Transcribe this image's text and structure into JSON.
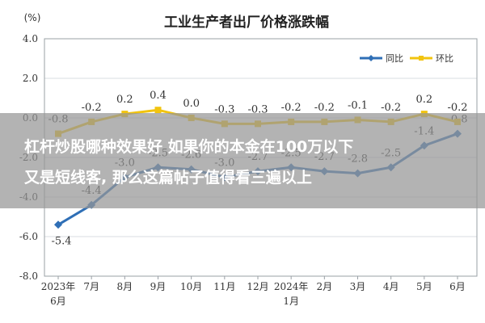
{
  "chart_data": {
    "type": "line",
    "title": "工业生产者出厂价格涨跌幅",
    "ylabel": "(%)",
    "xlabel": "",
    "ylim": [
      -8.0,
      4.0
    ],
    "yticks": [
      "4.0",
      "2.0",
      "0.0",
      "-2.0",
      "-4.0",
      "-6.0",
      "-8.0"
    ],
    "categories": [
      "2023年6月",
      "7月",
      "8月",
      "9月",
      "10月",
      "11月",
      "12月",
      "2024年1月",
      "2月",
      "3月",
      "4月",
      "5月",
      "6月"
    ],
    "x_tick_labels": [
      [
        "2023年",
        "6月"
      ],
      [
        "7月"
      ],
      [
        "8月"
      ],
      [
        "9月"
      ],
      [
        "10月"
      ],
      [
        "11月"
      ],
      [
        "12月"
      ],
      [
        "2024年",
        "1月"
      ],
      [
        "2月"
      ],
      [
        "3月"
      ],
      [
        "4月"
      ],
      [
        "5月"
      ],
      [
        "6月"
      ]
    ],
    "series": [
      {
        "name": "同比",
        "color": "#2f6fb6",
        "values": [
          -5.4,
          -4.4,
          -3.0,
          -2.5,
          -2.6,
          -3.0,
          -2.7,
          -2.5,
          -2.7,
          -2.8,
          -2.5,
          -1.4,
          -0.8
        ],
        "labels": [
          "-5.4",
          "-4.4",
          "-3.0",
          "-2.5",
          "-2.6",
          "-3.0",
          "-2.7",
          "-2.5",
          "-2.7",
          "-2.8",
          "-2.5",
          "-1.4",
          "-0.8"
        ]
      },
      {
        "name": "环比",
        "color": "#f2c40f",
        "values": [
          -0.8,
          -0.2,
          0.2,
          0.4,
          0.0,
          -0.3,
          -0.3,
          -0.2,
          -0.2,
          -0.1,
          -0.2,
          0.2,
          -0.2
        ],
        "labels": [
          "-0.8",
          "-0.2",
          "0.2",
          "0.4",
          "0.0",
          "-0.3",
          "-0.3",
          "-0.2",
          "-0.2",
          "-0.1",
          "-0.2",
          "0.2",
          "-0.2"
        ]
      }
    ],
    "grid": "horizontal",
    "legend_position": "top-right"
  },
  "banner": {
    "line1": "杠杆炒股哪种效果好 如果你的本金在100万以下",
    "line2": "又是短线客, 那么这篇帖子值得看三遍以上"
  }
}
